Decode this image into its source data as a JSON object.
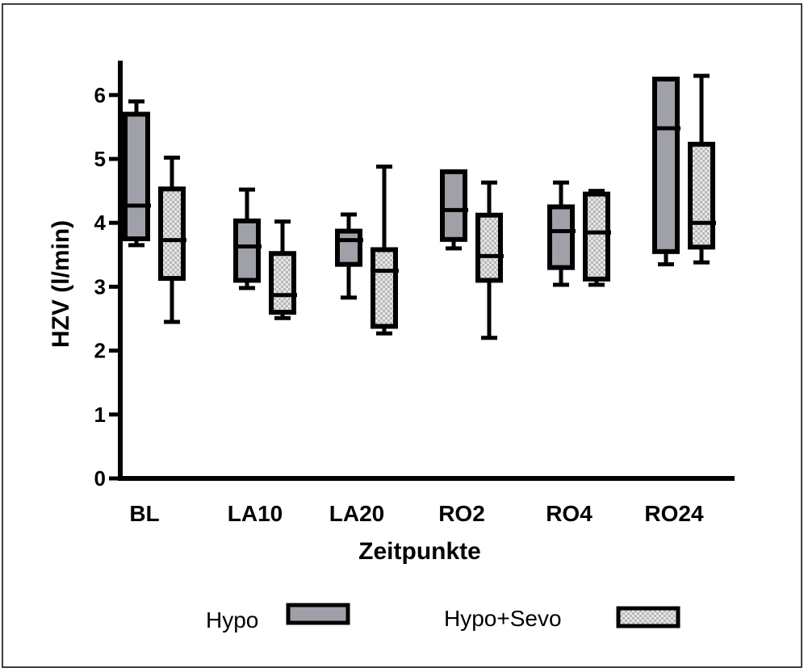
{
  "chart_data": {
    "type": "boxplot",
    "xlabel": "Zeitpunkte",
    "ylabel": "HZV (l/min)",
    "ylim": [
      0,
      6.5
    ],
    "yticks": [
      0,
      1,
      2,
      3,
      4,
      5,
      6
    ],
    "categories": [
      "BL",
      "LA10",
      "LA20",
      "RO2",
      "RO4",
      "RO24"
    ],
    "legend_placement": "bottom",
    "series": [
      {
        "name": "Hypo",
        "color": "#a0a0a8",
        "pattern": "solid",
        "boxes": [
          {
            "min": 3.65,
            "q1": 3.75,
            "median": 4.27,
            "q3": 5.7,
            "max": 5.9
          },
          {
            "min": 2.98,
            "q1": 3.1,
            "median": 3.63,
            "q3": 4.03,
            "max": 4.52
          },
          {
            "min": 2.83,
            "q1": 3.35,
            "median": 3.73,
            "q3": 3.87,
            "max": 4.13
          },
          {
            "min": 3.6,
            "q1": 3.74,
            "median": 4.2,
            "q3": 4.8,
            "max": 4.8
          },
          {
            "min": 3.03,
            "q1": 3.3,
            "median": 3.87,
            "q3": 4.25,
            "max": 4.63
          },
          {
            "min": 3.35,
            "q1": 3.55,
            "median": 5.48,
            "q3": 6.25,
            "max": 6.25
          }
        ]
      },
      {
        "name": "Hypo+Sevo",
        "color": "#d4d4d4",
        "pattern": "checkered",
        "boxes": [
          {
            "min": 2.45,
            "q1": 3.13,
            "median": 3.73,
            "q3": 4.53,
            "max": 5.02
          },
          {
            "min": 2.51,
            "q1": 2.6,
            "median": 2.87,
            "q3": 3.52,
            "max": 4.02
          },
          {
            "min": 2.27,
            "q1": 2.38,
            "median": 3.25,
            "q3": 3.58,
            "max": 4.88
          },
          {
            "min": 2.2,
            "q1": 3.1,
            "median": 3.48,
            "q3": 4.12,
            "max": 4.63
          },
          {
            "min": 3.03,
            "q1": 3.12,
            "median": 3.85,
            "q3": 4.45,
            "max": 4.5
          },
          {
            "min": 3.38,
            "q1": 3.62,
            "median": 4.0,
            "q3": 5.23,
            "max": 6.3
          }
        ]
      }
    ]
  }
}
